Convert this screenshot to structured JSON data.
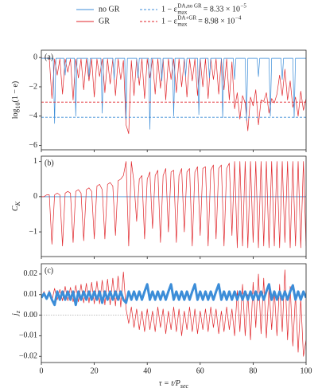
{
  "chart_data": [
    {
      "type": "line",
      "panel_label": "(a)",
      "ylabel": "log",
      "ylabel_sub": "10",
      "ylabel_rest": "(1 − e)",
      "ylim": [
        -6.3,
        0.5
      ],
      "yticks": [
        {
          "value": -6,
          "label": "−6"
        },
        {
          "value": -4,
          "label": "−4"
        },
        {
          "value": -2,
          "label": "−2"
        },
        0
      ],
      "xlim": [
        0,
        100
      ],
      "xticks": [
        0,
        20,
        40,
        60,
        80,
        100
      ],
      "show_xtick_labels": false,
      "series": [
        {
          "name": "GR",
          "color": "#e0262b",
          "x": [
            0,
            1,
            2,
            3,
            4,
            5,
            6,
            7,
            8,
            9,
            10,
            11,
            12,
            13,
            14,
            15,
            16,
            17,
            18,
            19,
            20,
            21,
            22,
            23,
            24,
            25,
            26,
            27,
            28,
            29,
            30,
            31,
            32,
            33,
            34,
            35,
            36,
            37,
            38,
            39,
            40,
            41,
            42,
            43,
            44,
            45,
            46,
            47,
            48,
            49,
            50,
            51,
            52,
            53,
            54,
            55,
            56,
            57,
            58,
            59,
            60,
            61,
            62,
            63,
            64,
            65,
            66,
            67,
            68,
            69,
            70,
            71,
            72,
            73,
            74,
            75,
            76,
            77,
            78,
            79,
            80,
            81,
            82,
            83,
            84,
            85,
            86,
            87,
            88,
            89,
            90,
            91,
            92,
            93,
            94,
            95,
            96,
            97,
            98,
            99,
            100
          ],
          "values": [
            -0.05,
            -0.05,
            -0.05,
            -0.05,
            -2.8,
            -0.1,
            -1.2,
            -0.1,
            -2.5,
            -0.1,
            -1.0,
            -0.1,
            -2.9,
            -0.1,
            -1.4,
            -0.1,
            -2.2,
            -0.1,
            -1.6,
            -0.1,
            -2.7,
            -0.1,
            -1.3,
            -0.1,
            -2.4,
            -0.1,
            -1.8,
            -0.1,
            -2.6,
            -0.1,
            -1.5,
            -0.2,
            -4.6,
            -5.2,
            -0.2,
            -2.6,
            -0.1,
            -1.9,
            -0.1,
            -2.8,
            -0.1,
            -1.4,
            -0.1,
            -2.5,
            -0.1,
            -2.1,
            -0.1,
            -2.9,
            -0.1,
            -1.5,
            -0.1,
            -2.4,
            -0.1,
            -2.0,
            -0.1,
            -2.7,
            -0.1,
            -1.6,
            -0.1,
            -2.6,
            -0.1,
            -2.0,
            -0.1,
            -2.8,
            -0.1,
            -1.5,
            -0.1,
            -2.5,
            -0.1,
            -2.2,
            -0.1,
            -2.9,
            -0.3,
            -3.5,
            -2.4,
            -4.2,
            -2.6,
            -3.1,
            -5.0,
            -2.7,
            -3.3,
            -2.2,
            -4.6,
            -2.9,
            -3.0,
            -2.4,
            -3.8,
            -2.8,
            -3.1,
            -2.5,
            -1.2,
            -2.6,
            -0.8,
            -2.9,
            -1.6,
            -3.4,
            -2.7,
            -4.0,
            -2.3,
            -3.6,
            -2.8
          ]
        },
        {
          "name": "no GR",
          "color": "#3c8dd8",
          "x": [
            0,
            4.5,
            5,
            5.5,
            8.5,
            9,
            9.5,
            12.5,
            13,
            13.5,
            17.5,
            18,
            18.5,
            22.5,
            23,
            23.5,
            27,
            27.5,
            28,
            31.5,
            32,
            32.5,
            36,
            36.5,
            37,
            40.5,
            41,
            41.5,
            45,
            45.5,
            46,
            49.5,
            50,
            50.5,
            54,
            54.5,
            55,
            59,
            59.5,
            60,
            63,
            63.5,
            64,
            68,
            68.5,
            69,
            72.5,
            73,
            73.5,
            77,
            77.5,
            78,
            81.5,
            82,
            82.5,
            86,
            86.5,
            87,
            90.5,
            91,
            91.5,
            95,
            95.5,
            96,
            100
          ],
          "values": [
            -0.05,
            -0.05,
            -4.5,
            -0.05,
            -0.05,
            -1.2,
            -0.05,
            -0.05,
            -4.0,
            -0.05,
            -0.05,
            -1.3,
            -0.05,
            -0.05,
            -3.8,
            -0.05,
            -0.05,
            -1.5,
            -0.05,
            -0.05,
            -4.2,
            -0.05,
            -0.05,
            -1.4,
            -0.05,
            -0.05,
            -4.9,
            -0.05,
            -0.05,
            -1.6,
            -0.05,
            -0.05,
            -4.0,
            -0.05,
            -0.05,
            -1.3,
            -0.05,
            -0.05,
            -3.9,
            -0.05,
            -0.05,
            -1.4,
            -0.05,
            -0.05,
            -4.1,
            -0.05,
            -0.05,
            -1.5,
            -0.05,
            -0.05,
            -4.3,
            -0.05,
            -0.05,
            -1.3,
            -0.05,
            -0.05,
            -4.0,
            -0.05,
            -0.05,
            -1.5,
            -0.05,
            -0.05,
            -4.1,
            -0.05,
            -0.05
          ]
        }
      ],
      "reference_lines": [
        {
          "color": "#3c8dd8",
          "value": -4.079,
          "lhs": "1 − ε",
          "sup": "DA,no GR",
          "sub": "max",
          "rhs": "= 8.33 × 10",
          "exp": "−5"
        },
        {
          "color": "#e0262b",
          "value": -3.047,
          "lhs": "1 − ε",
          "sup": "DA+GR",
          "sub": "max",
          "rhs": "= 8.98 × 10",
          "exp": "−4"
        }
      ]
    },
    {
      "type": "line",
      "panel_label": "(b)",
      "ylabel": "C",
      "ylabel_sub": "K",
      "zero_line": "solid",
      "ylim": [
        -1.7,
        1.15
      ],
      "yticks": [
        {
          "value": -1,
          "label": "−1"
        },
        0,
        1
      ],
      "xlim": [
        0,
        100
      ],
      "xticks": [
        0,
        20,
        40,
        60,
        80,
        100
      ],
      "show_xtick_labels": false,
      "series": [
        {
          "name": "no GR",
          "color": "#3c8dd8",
          "x": [
            0,
            100
          ],
          "values": [
            0,
            0
          ]
        },
        {
          "name": "GR",
          "color": "#e0262b",
          "x": [
            0,
            1,
            2,
            3,
            4,
            5,
            6,
            7,
            8,
            9,
            10,
            11,
            12,
            13,
            14,
            15,
            16,
            17,
            18,
            19,
            20,
            21,
            22,
            23,
            24,
            25,
            26,
            27,
            28,
            29,
            30,
            31,
            32,
            33,
            34,
            35,
            36,
            37,
            38,
            39,
            40,
            41,
            42,
            43,
            44,
            45,
            46,
            47,
            48,
            49,
            50,
            51,
            52,
            53,
            54,
            55,
            56,
            57,
            58,
            59,
            60,
            61,
            62,
            63,
            64,
            65,
            66,
            67,
            68,
            69,
            70,
            71,
            72,
            73,
            74,
            75,
            76,
            77,
            78,
            79,
            80,
            81,
            82,
            83,
            84,
            85,
            86,
            87,
            88,
            89,
            90,
            91,
            92,
            93,
            94,
            95,
            96,
            97,
            98,
            99,
            100
          ],
          "values": [
            0,
            0,
            0.05,
            0.05,
            -1.35,
            0.05,
            0.1,
            0.05,
            -1.4,
            0.1,
            0.15,
            0.1,
            -1.3,
            0.15,
            0.2,
            0.1,
            -1.25,
            0.2,
            0.25,
            0.15,
            -1.2,
            0.3,
            0.35,
            0.2,
            -1.2,
            0.35,
            0.4,
            0.3,
            -1.1,
            0.45,
            0.5,
            0.6,
            1.0,
            -1.4,
            1.0,
            0.4,
            -0.7,
            0.5,
            0.6,
            -1.2,
            0.5,
            0.7,
            -0.9,
            0.6,
            0.75,
            -1.3,
            0.6,
            0.8,
            -1.0,
            0.7,
            0.75,
            -1.3,
            0.6,
            0.8,
            -1.0,
            0.7,
            0.8,
            -1.4,
            0.7,
            0.85,
            -1.1,
            0.8,
            0.85,
            -1.4,
            0.75,
            0.9,
            -1.2,
            0.8,
            0.9,
            -1.4,
            0.8,
            0.95,
            -1.1,
            1.0,
            -1.45,
            1.0,
            -1.4,
            1.0,
            -1.45,
            1.0,
            -1.3,
            1.0,
            -1.45,
            1.0,
            -1.4,
            1.0,
            -1.45,
            1.0,
            -1.4,
            1.0,
            -1.45,
            1.0,
            -1.3,
            1.0,
            -1.45,
            1.0,
            -1.4,
            1.0,
            -1.45,
            1.0,
            -1.4
          ]
        }
      ]
    },
    {
      "type": "line",
      "panel_label": "(c)",
      "ylabel": "j",
      "ylabel_sub": "z",
      "zero_line": "dotted",
      "ylim": [
        -0.023,
        0.025
      ],
      "yticks": [
        {
          "value": -0.02,
          "label": "−0.02"
        },
        {
          "value": -0.01,
          "label": "−0.01"
        },
        {
          "value": 0,
          "label": "0.00"
        },
        0.01,
        0.02
      ],
      "xlim": [
        0,
        100
      ],
      "xticks": [
        0,
        20,
        40,
        60,
        80,
        100
      ],
      "show_xtick_labels": true,
      "xlabel": "τ = t/P",
      "xlabel_sub": "sec",
      "series": [
        {
          "name": "GR",
          "color": "#e0262b",
          "x": [
            0,
            1,
            2,
            3,
            4,
            5,
            6,
            7,
            8,
            9,
            10,
            11,
            12,
            13,
            14,
            15,
            16,
            17,
            18,
            19,
            20,
            21,
            22,
            23,
            24,
            25,
            26,
            27,
            28,
            29,
            30,
            31,
            32,
            33,
            34,
            35,
            36,
            37,
            38,
            39,
            40,
            41,
            42,
            43,
            44,
            45,
            46,
            47,
            48,
            49,
            50,
            51,
            52,
            53,
            54,
            55,
            56,
            57,
            58,
            59,
            60,
            61,
            62,
            63,
            64,
            65,
            66,
            67,
            68,
            69,
            70,
            71,
            72,
            73,
            74,
            75,
            76,
            77,
            78,
            79,
            80,
            81,
            82,
            83,
            84,
            85,
            86,
            87,
            88,
            89,
            90,
            91,
            92,
            93,
            94,
            95,
            96,
            97,
            98,
            99,
            100
          ],
          "values": [
            0.0085,
            0.0115,
            0.008,
            0.012,
            0.007,
            0.013,
            0.0075,
            0.0125,
            0.007,
            0.014,
            0.007,
            0.0135,
            0.0065,
            0.0145,
            0.0065,
            0.015,
            0.006,
            0.0155,
            0.006,
            0.016,
            0.0055,
            0.0165,
            0.0055,
            0.017,
            0.005,
            0.0175,
            0.005,
            0.018,
            0.0045,
            0.019,
            0.004,
            0.021,
            0.003,
            -0.004,
            0.004,
            -0.006,
            0.003,
            -0.007,
            0.002,
            -0.008,
            0.003,
            -0.007,
            0.002,
            -0.008,
            0.004,
            -0.006,
            0.003,
            -0.009,
            0.002,
            -0.007,
            0.004,
            -0.008,
            0.003,
            -0.01,
            0.002,
            -0.007,
            0.004,
            -0.008,
            0.003,
            -0.009,
            0.002,
            -0.007,
            0.003,
            -0.008,
            0.004,
            -0.006,
            0.003,
            -0.009,
            0.002,
            -0.008,
            0.004,
            -0.007,
            0.003,
            -0.01,
            0.012,
            -0.008,
            0.015,
            -0.01,
            0.01,
            -0.012,
            0.016,
            -0.006,
            0.02,
            -0.009,
            0.018,
            -0.011,
            0.013,
            -0.007,
            0.012,
            -0.01,
            0.015,
            -0.008,
            0.022,
            -0.012,
            0.014,
            -0.015,
            0.01,
            -0.018,
            0.008,
            -0.02,
            -0.012
          ]
        },
        {
          "name": "no GR",
          "color": "#3c8dd8",
          "x": [
            0,
            1,
            2,
            3,
            4,
            5,
            6,
            7,
            8,
            9,
            10,
            11,
            12,
            13,
            14,
            15,
            16,
            17,
            18,
            19,
            20,
            21,
            22,
            23,
            24,
            25,
            26,
            27,
            28,
            29,
            30,
            31,
            32,
            33,
            34,
            35,
            36,
            37,
            38,
            39,
            40,
            41,
            42,
            43,
            44,
            45,
            46,
            47,
            48,
            49,
            50,
            51,
            52,
            53,
            54,
            55,
            56,
            57,
            58,
            59,
            60,
            61,
            62,
            63,
            64,
            65,
            66,
            67,
            68,
            69,
            70,
            71,
            72,
            73,
            74,
            75,
            76,
            77,
            78,
            79,
            80,
            81,
            82,
            83,
            84,
            85,
            86,
            87,
            88,
            89,
            90,
            91,
            92,
            93,
            94,
            95,
            96,
            97,
            98,
            99,
            100
          ],
          "values": [
            0.0085,
            0.0105,
            0.008,
            0.011,
            0.0075,
            0.005,
            0.0115,
            0.0075,
            0.0115,
            0.0075,
            0.0115,
            0.0075,
            0.0115,
            0.005,
            0.0115,
            0.0075,
            0.0115,
            0.0075,
            0.0115,
            0.0075,
            0.0115,
            0.0075,
            0.0115,
            0.006,
            0.0115,
            0.0075,
            0.0115,
            0.0075,
            0.0115,
            0.0075,
            0.0115,
            0.0075,
            0.006,
            0.0115,
            0.0075,
            0.0115,
            0.0075,
            0.0115,
            0.0075,
            0.0115,
            0.015,
            0.0075,
            0.0115,
            0.0075,
            0.0115,
            0.0075,
            0.0115,
            0.0075,
            0.0115,
            0.015,
            0.0075,
            0.0115,
            0.0075,
            0.0115,
            0.0075,
            0.0115,
            0.0075,
            0.0115,
            0.015,
            0.0075,
            0.0115,
            0.0075,
            0.0115,
            0.0075,
            0.0115,
            0.0075,
            0.0115,
            0.015,
            0.0075,
            0.0115,
            0.0075,
            0.0115,
            0.0075,
            0.0115,
            0.0075,
            0.0115,
            0.0075,
            0.0115,
            0.0075,
            0.0115,
            0.0075,
            0.0115,
            0.0075,
            0.0115,
            0.0075,
            0.0115,
            0.015,
            0.0075,
            0.0115,
            0.0075,
            0.0115,
            0.0075,
            0.0115,
            0.0075,
            0.0115,
            0.0145,
            0.0075,
            0.0115,
            0.0075,
            0.0115,
            0.0085
          ]
        }
      ]
    }
  ]
}
